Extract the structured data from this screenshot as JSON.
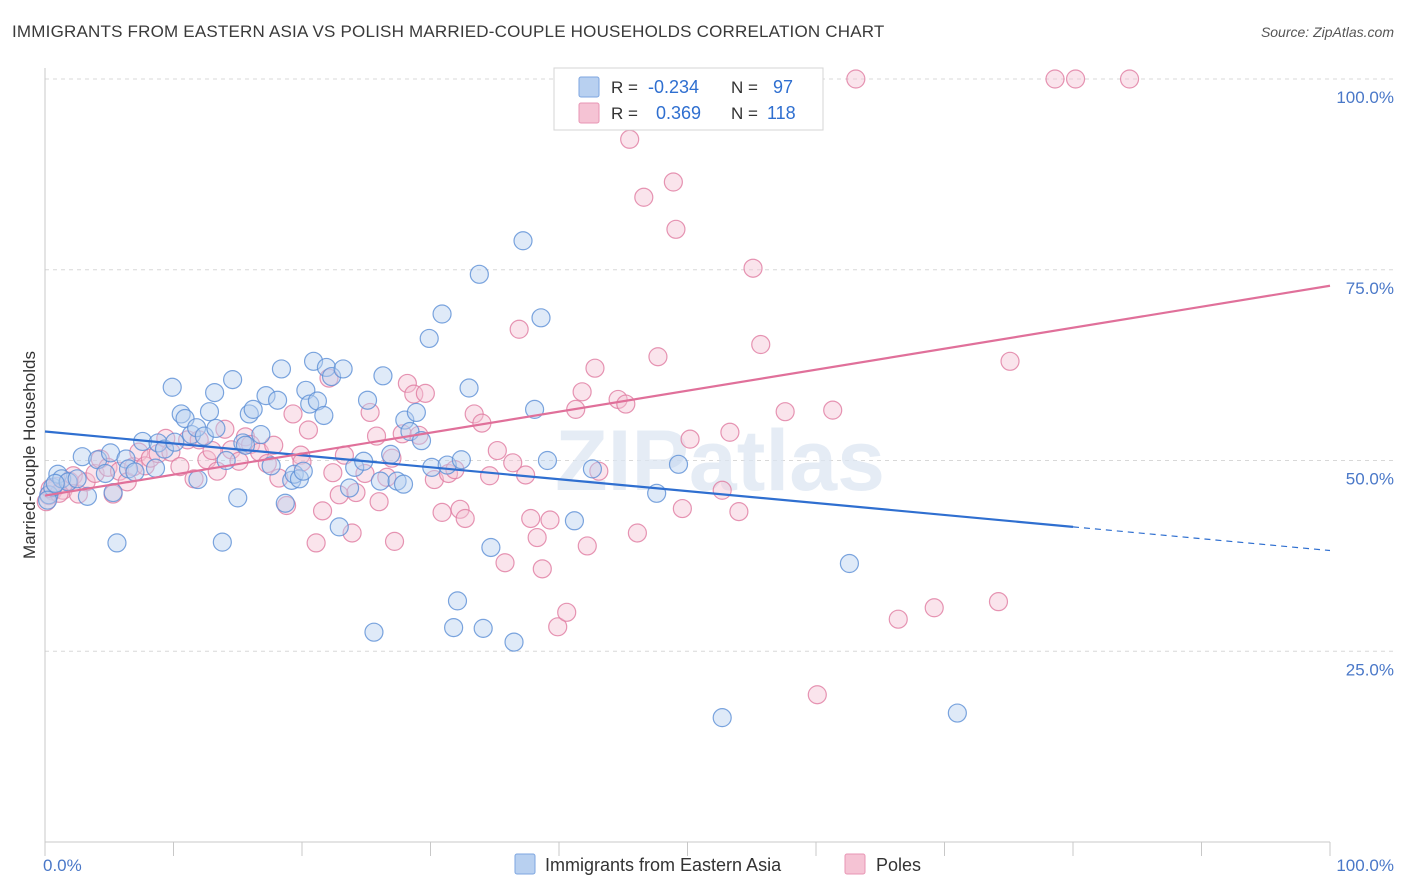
{
  "title": "IMMIGRANTS FROM EASTERN ASIA VS POLISH MARRIED-COUPLE HOUSEHOLDS CORRELATION CHART",
  "source": "Source: ZipAtlas.com",
  "watermark": "ZIPatlas",
  "colors": {
    "blue": "#5b8fd6",
    "blue_fill": "#b8d0f0",
    "blue_line": "#2f6fd0",
    "pink": "#e07aa0",
    "pink_fill": "#f5c3d4",
    "pink_line": "#e0709a",
    "grid": "#d8d8d8",
    "tick_label": "#4a78c8"
  },
  "legend": {
    "rows": [
      {
        "r_label": "R =",
        "r_value": "-0.234",
        "n_label": "N =",
        "n_value": "97",
        "series": "blue"
      },
      {
        "r_label": "R =",
        "r_value": "0.369",
        "n_label": "N =",
        "n_value": "118",
        "series": "pink"
      }
    ]
  },
  "chart_data": {
    "type": "scatter",
    "title": "IMMIGRANTS FROM EASTERN ASIA VS POLISH MARRIED-COUPLE HOUSEHOLDS CORRELATION CHART",
    "xlabel": "",
    "ylabel": "Married-couple Households",
    "xlim": [
      0,
      100
    ],
    "ylim": [
      0,
      100
    ],
    "x_tick_labels": [
      "0.0%",
      "100.0%"
    ],
    "y_ticks": [
      25,
      50,
      75,
      100
    ],
    "y_tick_labels": [
      "25.0%",
      "50.0%",
      "75.0%",
      "100.0%"
    ],
    "grid": true,
    "legend_position": "top-center",
    "series": [
      {
        "name": "Immigrants from Eastern Asia",
        "color": "blue",
        "r": -0.234,
        "n": 97,
        "trend": {
          "x0": 0,
          "y0": 53.8,
          "x1": 80,
          "y1": 41.3,
          "dashed_to_x": 100,
          "dashed_to_y": 38.2
        },
        "points": [
          [
            0.3,
            45.5
          ],
          [
            0.6,
            46.5
          ],
          [
            1.0,
            48.2
          ],
          [
            1.3,
            47.6
          ],
          [
            1.8,
            47.2
          ],
          [
            2.5,
            47.6
          ],
          [
            2.9,
            50.5
          ],
          [
            3.3,
            45.3
          ],
          [
            4.1,
            50.1
          ],
          [
            4.7,
            48.3
          ],
          [
            5.1,
            51.0
          ],
          [
            5.3,
            45.8
          ],
          [
            5.6,
            39.2
          ],
          [
            6.3,
            50.2
          ],
          [
            6.5,
            48.9
          ],
          [
            7.0,
            48.5
          ],
          [
            7.6,
            52.5
          ],
          [
            8.6,
            49.0
          ],
          [
            8.8,
            52.3
          ],
          [
            9.3,
            51.5
          ],
          [
            9.9,
            59.6
          ],
          [
            10.1,
            52.4
          ],
          [
            10.6,
            56.1
          ],
          [
            10.9,
            55.5
          ],
          [
            11.4,
            53.4
          ],
          [
            11.8,
            54.3
          ],
          [
            11.9,
            47.5
          ],
          [
            12.4,
            53.2
          ],
          [
            12.8,
            56.4
          ],
          [
            13.2,
            58.9
          ],
          [
            13.3,
            54.2
          ],
          [
            13.8,
            39.3
          ],
          [
            14.1,
            50.0
          ],
          [
            14.6,
            60.6
          ],
          [
            15.0,
            45.1
          ],
          [
            15.4,
            52.3
          ],
          [
            15.6,
            52.0
          ],
          [
            15.9,
            56.1
          ],
          [
            16.2,
            56.7
          ],
          [
            16.8,
            53.4
          ],
          [
            17.2,
            58.5
          ],
          [
            17.6,
            49.3
          ],
          [
            18.1,
            57.9
          ],
          [
            18.4,
            62.0
          ],
          [
            18.7,
            44.4
          ],
          [
            19.2,
            47.4
          ],
          [
            19.4,
            48.2
          ],
          [
            19.8,
            47.6
          ],
          [
            20.1,
            48.6
          ],
          [
            20.3,
            59.2
          ],
          [
            20.6,
            57.4
          ],
          [
            20.9,
            63.0
          ],
          [
            21.2,
            57.8
          ],
          [
            21.7,
            55.9
          ],
          [
            21.9,
            62.2
          ],
          [
            22.3,
            61.0
          ],
          [
            22.9,
            41.3
          ],
          [
            23.2,
            62.0
          ],
          [
            23.7,
            46.4
          ],
          [
            24.1,
            49.1
          ],
          [
            24.8,
            49.9
          ],
          [
            25.1,
            57.9
          ],
          [
            25.6,
            27.5
          ],
          [
            26.1,
            47.3
          ],
          [
            26.3,
            61.1
          ],
          [
            26.9,
            50.8
          ],
          [
            27.4,
            47.3
          ],
          [
            27.9,
            46.9
          ],
          [
            28.0,
            55.3
          ],
          [
            28.4,
            53.8
          ],
          [
            28.9,
            56.3
          ],
          [
            29.3,
            52.6
          ],
          [
            29.9,
            66.0
          ],
          [
            30.1,
            49.1
          ],
          [
            30.9,
            69.2
          ],
          [
            31.3,
            49.4
          ],
          [
            31.8,
            28.1
          ],
          [
            32.1,
            31.6
          ],
          [
            32.4,
            50.1
          ],
          [
            33.0,
            59.5
          ],
          [
            33.8,
            74.4
          ],
          [
            34.1,
            28.0
          ],
          [
            34.7,
            38.6
          ],
          [
            36.5,
            26.2
          ],
          [
            37.2,
            78.8
          ],
          [
            38.1,
            56.7
          ],
          [
            38.6,
            68.7
          ],
          [
            39.1,
            50.0
          ],
          [
            41.2,
            42.1
          ],
          [
            42.6,
            48.9
          ],
          [
            47.6,
            45.7
          ],
          [
            49.3,
            49.5
          ],
          [
            52.7,
            16.3
          ],
          [
            62.6,
            36.5
          ],
          [
            71.0,
            16.9
          ],
          [
            0.2,
            44.8
          ],
          [
            0.8,
            47.0
          ]
        ]
      },
      {
        "name": "Poles",
        "color": "pink",
        "r": 0.369,
        "n": 118,
        "trend": {
          "x0": 0,
          "y0": 45.4,
          "x1": 100,
          "y1": 72.9
        },
        "points": [
          [
            0.3,
            45.4
          ],
          [
            0.6,
            46.0
          ],
          [
            0.9,
            46.6
          ],
          [
            1.4,
            46.1
          ],
          [
            1.9,
            47.3
          ],
          [
            2.2,
            48.0
          ],
          [
            2.6,
            45.6
          ],
          [
            3.2,
            47.2
          ],
          [
            3.9,
            48.3
          ],
          [
            4.3,
            50.2
          ],
          [
            4.9,
            49.1
          ],
          [
            5.3,
            45.6
          ],
          [
            5.8,
            48.6
          ],
          [
            6.4,
            47.2
          ],
          [
            6.9,
            49.2
          ],
          [
            7.3,
            51.1
          ],
          [
            7.8,
            49.3
          ],
          [
            8.2,
            50.3
          ],
          [
            8.8,
            50.9
          ],
          [
            9.4,
            52.9
          ],
          [
            9.8,
            51.1
          ],
          [
            10.5,
            49.2
          ],
          [
            11.1,
            52.7
          ],
          [
            11.6,
            47.6
          ],
          [
            12.0,
            52.7
          ],
          [
            12.6,
            50.1
          ],
          [
            13.0,
            51.3
          ],
          [
            13.4,
            48.6
          ],
          [
            14.0,
            54.1
          ],
          [
            14.5,
            51.4
          ],
          [
            15.1,
            49.9
          ],
          [
            15.6,
            53.1
          ],
          [
            16.0,
            52.1
          ],
          [
            16.7,
            51.1
          ],
          [
            17.3,
            49.6
          ],
          [
            17.8,
            52.0
          ],
          [
            18.2,
            47.7
          ],
          [
            18.8,
            44.1
          ],
          [
            19.3,
            56.1
          ],
          [
            19.9,
            50.7
          ],
          [
            20.0,
            49.8
          ],
          [
            20.5,
            54.0
          ],
          [
            21.1,
            39.2
          ],
          [
            21.6,
            43.4
          ],
          [
            22.1,
            60.8
          ],
          [
            22.4,
            48.4
          ],
          [
            22.9,
            45.5
          ],
          [
            23.3,
            50.7
          ],
          [
            23.9,
            40.5
          ],
          [
            24.2,
            45.8
          ],
          [
            24.9,
            48.3
          ],
          [
            25.3,
            56.3
          ],
          [
            25.8,
            53.2
          ],
          [
            26.0,
            44.6
          ],
          [
            26.6,
            47.8
          ],
          [
            27.0,
            50.3
          ],
          [
            27.2,
            39.4
          ],
          [
            27.8,
            53.5
          ],
          [
            28.2,
            60.1
          ],
          [
            28.7,
            58.7
          ],
          [
            29.1,
            53.3
          ],
          [
            29.6,
            58.8
          ],
          [
            30.3,
            47.5
          ],
          [
            30.9,
            43.2
          ],
          [
            31.4,
            48.3
          ],
          [
            31.9,
            48.8
          ],
          [
            32.3,
            43.6
          ],
          [
            32.7,
            42.4
          ],
          [
            33.4,
            56.1
          ],
          [
            34.0,
            54.9
          ],
          [
            34.6,
            48.0
          ],
          [
            35.2,
            51.3
          ],
          [
            35.8,
            36.6
          ],
          [
            36.4,
            49.7
          ],
          [
            36.9,
            67.2
          ],
          [
            37.4,
            48.1
          ],
          [
            37.8,
            42.4
          ],
          [
            38.3,
            39.9
          ],
          [
            38.7,
            35.8
          ],
          [
            39.3,
            42.2
          ],
          [
            39.9,
            28.2
          ],
          [
            40.6,
            30.1
          ],
          [
            41.3,
            56.7
          ],
          [
            41.8,
            59.0
          ],
          [
            42.2,
            38.8
          ],
          [
            42.8,
            62.1
          ],
          [
            43.1,
            48.6
          ],
          [
            44.6,
            58.0
          ],
          [
            45.2,
            57.4
          ],
          [
            45.5,
            92.1
          ],
          [
            46.1,
            40.5
          ],
          [
            46.6,
            84.5
          ],
          [
            47.1,
            100.0
          ],
          [
            47.7,
            63.6
          ],
          [
            48.4,
            100.0
          ],
          [
            48.9,
            86.5
          ],
          [
            49.1,
            80.3
          ],
          [
            49.6,
            43.7
          ],
          [
            50.2,
            52.8
          ],
          [
            52.7,
            46.1
          ],
          [
            53.3,
            53.7
          ],
          [
            54.0,
            43.3
          ],
          [
            55.1,
            75.2
          ],
          [
            55.7,
            65.2
          ],
          [
            57.6,
            56.4
          ],
          [
            60.1,
            19.3
          ],
          [
            61.3,
            56.6
          ],
          [
            63.1,
            100.0
          ],
          [
            66.4,
            29.2
          ],
          [
            69.2,
            30.7
          ],
          [
            74.2,
            31.5
          ],
          [
            75.1,
            63.0
          ],
          [
            78.6,
            100.0
          ],
          [
            80.2,
            100.0
          ],
          [
            84.4,
            100.0
          ],
          [
            0.1,
            44.6
          ],
          [
            0.4,
            46.3
          ],
          [
            1.1,
            45.7
          ]
        ]
      }
    ]
  },
  "bottom_legend": {
    "items": [
      {
        "label": "Immigrants from Eastern Asia",
        "series": "blue"
      },
      {
        "label": "Poles",
        "series": "pink"
      }
    ]
  }
}
